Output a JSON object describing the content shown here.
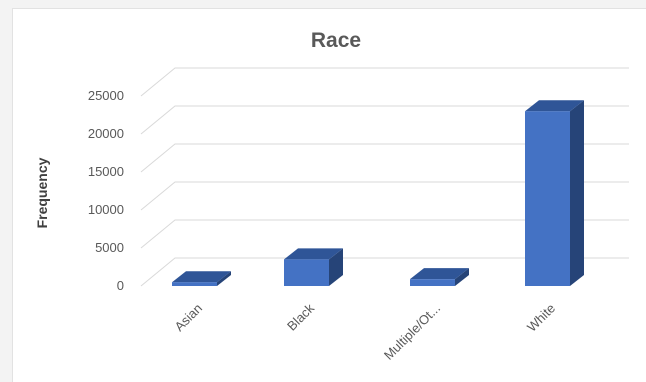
{
  "chart_data": {
    "type": "bar",
    "title": "Race",
    "xlabel": "",
    "ylabel": "Frequency",
    "categories": [
      "Asian",
      "Black",
      "Multiple/Ot...",
      "White"
    ],
    "values": [
      500,
      3500,
      900,
      23000
    ],
    "ylim": [
      0,
      25000
    ],
    "yticks": [
      0,
      5000,
      10000,
      15000,
      20000,
      25000
    ],
    "grid": true,
    "legend": "none",
    "style": "3d-column",
    "colors": {
      "bar_front": "#4472c4",
      "bar_top": "#2f5597",
      "bar_side": "#264478",
      "gridline": "#d9d9d9",
      "text": "#595959"
    }
  }
}
